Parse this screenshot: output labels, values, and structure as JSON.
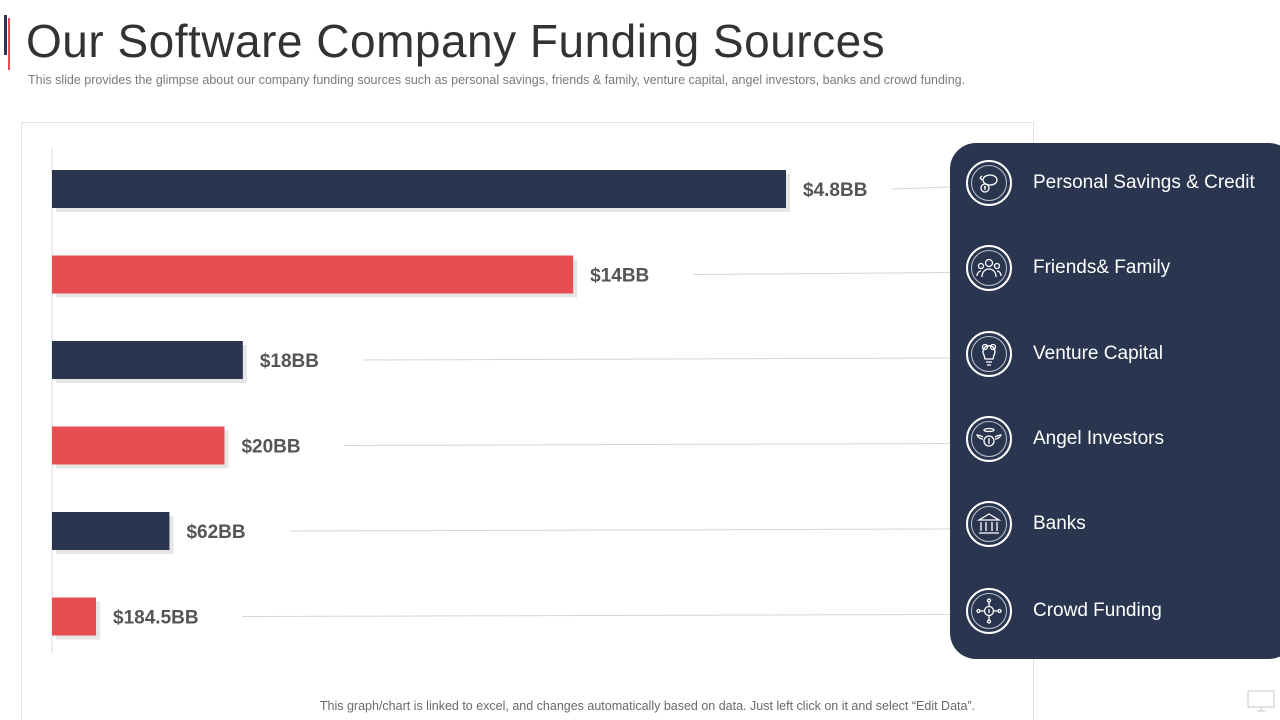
{
  "title": "Our Software Company Funding Sources",
  "subtitle": "This slide provides  the glimpse about our company funding sources such as personal savings, friends & family, venture capital, angel investors,  banks and crowd funding.",
  "footer_note": "This graph/chart is linked to excel, and changes automatically based on data. Just left click on it and select “Edit Data”.",
  "colors": {
    "navy": "#2a3650",
    "red": "#e84d52",
    "text": "#333333"
  },
  "chart_data": {
    "type": "bar",
    "orientation": "horizontal",
    "title": "",
    "xlabel": "",
    "ylabel": "",
    "grid": false,
    "categories": [
      "Personal Savings & Credit",
      "Friends& Family",
      "Venture Capital",
      "Angel Investors",
      "Banks",
      "Crowd Funding"
    ],
    "values": [
      100,
      71,
      26,
      23.5,
      16,
      6
    ],
    "value_labels": [
      "$4.8BB",
      "$14BB",
      "$18BB",
      "$20BB",
      "$62BB",
      "$184.5BB"
    ],
    "value_scale": "relative bar length (0-100)",
    "bar_colors": [
      "#2a3650",
      "#e84d52",
      "#2a3650",
      "#e84d52",
      "#2a3650",
      "#e84d52"
    ],
    "xlim": [
      0,
      100
    ],
    "legend_position": "right"
  },
  "legend": {
    "items": [
      {
        "label": "Personal Savings & Credit",
        "icon": "piggy-bank-icon"
      },
      {
        "label": "Friends& Family",
        "icon": "people-group-icon"
      },
      {
        "label": "Venture Capital",
        "icon": "lightbulb-dollar-icon"
      },
      {
        "label": "Angel Investors",
        "icon": "winged-dollar-icon"
      },
      {
        "label": "Banks",
        "icon": "bank-building-icon"
      },
      {
        "label": "Crowd Funding",
        "icon": "crowd-network-icon"
      }
    ]
  }
}
